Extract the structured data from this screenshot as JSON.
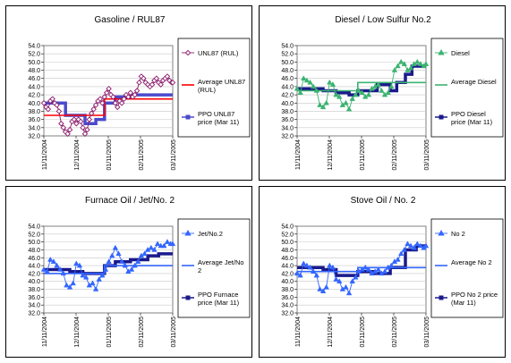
{
  "chart_data": [
    {
      "type": "line",
      "title": "Gasoline / RUL87",
      "ylim": [
        32.0,
        54.0
      ],
      "y_ticks": [
        "54.0",
        "52.0",
        "50.0",
        "48.0",
        "46.0",
        "44.0",
        "42.0",
        "40.0",
        "38.0",
        "36.0",
        "34.0",
        "32.0"
      ],
      "x_ticks": [
        "11/11/2004",
        "12/11/2004",
        "01/11/2005",
        "02/11/2005",
        "03/11/2005"
      ],
      "colors": {
        "market": "#8B1A6B",
        "average": "#FF0000",
        "ppo": "#4A4ACC"
      },
      "legend": [
        "UNL87 (RUL)",
        "Average UNL87 (RUL)",
        "PPO UNL87 price (Mar 11)"
      ],
      "series": [
        {
          "name": "UNL87 (RUL)",
          "marker": "diamond",
          "x": [
            0,
            2,
            4,
            6,
            8,
            10,
            12,
            14,
            16,
            18,
            20,
            22,
            24,
            26,
            28,
            30,
            32,
            34,
            36,
            38,
            40,
            42,
            44,
            46,
            48,
            50,
            52,
            54,
            56,
            58,
            60,
            62,
            64,
            66,
            68,
            70,
            72,
            74,
            76,
            78,
            80,
            82,
            84,
            86,
            88,
            90,
            92,
            94,
            96,
            98,
            100,
            102,
            104,
            106,
            108,
            110,
            112,
            114,
            116,
            118,
            119
          ],
          "y": [
            40.0,
            39.0,
            38.5,
            40.5,
            41.0,
            40.0,
            39.5,
            38.0,
            35.0,
            34.0,
            33.0,
            32.5,
            33.5,
            35.5,
            36.0,
            35.0,
            36.0,
            35.5,
            34.0,
            32.5,
            33.5,
            36.0,
            37.5,
            38.5,
            39.5,
            40.5,
            41.0,
            40.0,
            41.5,
            42.5,
            43.5,
            42.0,
            41.5,
            40.0,
            39.0,
            40.5,
            40.0,
            41.0,
            42.0,
            41.5,
            42.5,
            41.5,
            42.0,
            43.0,
            45.0,
            46.5,
            46.0,
            45.0,
            44.5,
            44.0,
            44.5,
            45.5,
            46.0,
            45.0,
            44.5,
            45.5,
            46.0,
            46.5,
            45.5,
            45.0,
            45.0
          ]
        },
        {
          "name": "Average UNL87 (RUL)",
          "x": [
            0,
            56,
            56,
            119
          ],
          "y": [
            37.0,
            37.0,
            41.0,
            41.0
          ]
        },
        {
          "name": "PPO UNL87 price (Mar 11)",
          "x": [
            0,
            20,
            20,
            38,
            38,
            48,
            48,
            56,
            56,
            66,
            66,
            82,
            82,
            119
          ],
          "y": [
            40.0,
            40.0,
            37.0,
            37.0,
            35.0,
            35.0,
            36.0,
            36.0,
            40.0,
            40.0,
            41.5,
            41.5,
            42.0,
            42.0
          ]
        }
      ]
    },
    {
      "type": "line",
      "title": "Diesel / Low Sulfur No.2",
      "ylim": [
        32.0,
        54.0
      ],
      "y_ticks": [
        "54.0",
        "52.0",
        "50.0",
        "48.0",
        "46.0",
        "44.0",
        "42.0",
        "40.0",
        "38.0",
        "36.0",
        "34.0",
        "32.0"
      ],
      "x_ticks": [
        "11/11/2004",
        "12/11/2004",
        "01/11/2005",
        "02/11/2005",
        "03/11/2005"
      ],
      "colors": {
        "market": "#3CB371",
        "average": "#3CB371",
        "ppo": "#1A1A8C"
      },
      "legend": [
        "Diesel",
        "Average Diesel",
        "PPO Diesel price (Mar 11)"
      ],
      "series": [
        {
          "name": "Diesel",
          "marker": "triangle",
          "x": [
            0,
            3,
            6,
            9,
            12,
            15,
            18,
            21,
            24,
            27,
            30,
            33,
            36,
            39,
            42,
            45,
            48,
            51,
            54,
            57,
            60,
            63,
            66,
            69,
            72,
            75,
            78,
            81,
            84,
            87,
            90,
            93,
            96,
            99,
            102,
            105,
            108,
            111,
            114,
            117,
            119
          ],
          "y": [
            43.5,
            42.5,
            46.0,
            45.5,
            45.0,
            44.0,
            43.0,
            39.5,
            39.0,
            40.0,
            45.0,
            44.5,
            42.0,
            41.5,
            39.5,
            40.0,
            38.5,
            41.0,
            42.0,
            43.0,
            42.5,
            41.5,
            42.0,
            43.5,
            44.0,
            44.5,
            43.0,
            42.0,
            42.5,
            44.0,
            48.0,
            49.0,
            50.0,
            49.5,
            48.0,
            48.5,
            49.5,
            50.0,
            49.5,
            49.0,
            49.5
          ]
        },
        {
          "name": "Average Diesel",
          "x": [
            0,
            56,
            56,
            119
          ],
          "y": [
            43.0,
            43.0,
            45.0,
            45.0
          ]
        },
        {
          "name": "PPO Diesel price (Mar 11)",
          "x": [
            0,
            24,
            24,
            36,
            36,
            48,
            48,
            56,
            56,
            74,
            74,
            86,
            86,
            92,
            92,
            100,
            100,
            106,
            106,
            119
          ],
          "y": [
            43.5,
            43.5,
            43.0,
            43.0,
            42.5,
            42.5,
            42.0,
            42.0,
            43.0,
            43.0,
            44.5,
            44.5,
            43.0,
            43.0,
            45.0,
            45.0,
            47.0,
            47.0,
            49.0,
            49.0
          ]
        }
      ]
    },
    {
      "type": "line",
      "title": "Furnace Oil /  Jet/No. 2",
      "ylim": [
        32.0,
        54.0
      ],
      "y_ticks": [
        "54.0",
        "52.0",
        "50.0",
        "48.0",
        "46.0",
        "44.0",
        "42.0",
        "40.0",
        "38.0",
        "36.0",
        "34.0",
        "32.0"
      ],
      "x_ticks": [
        "11/11/2004",
        "12/11/2004",
        "01/11/2005",
        "02/11/2005",
        "03/11/2005"
      ],
      "colors": {
        "market": "#3366FF",
        "average": "#3366FF",
        "ppo": "#1A1A8C"
      },
      "legend": [
        "Jet/No.2",
        "Average Jet/No 2",
        "PPO Furnace price (Mar 11)"
      ],
      "series": [
        {
          "name": "Jet/No.2",
          "marker": "triangle",
          "x": [
            0,
            3,
            6,
            9,
            12,
            15,
            18,
            21,
            24,
            27,
            30,
            33,
            36,
            39,
            42,
            45,
            48,
            51,
            54,
            57,
            60,
            63,
            66,
            69,
            72,
            75,
            78,
            81,
            84,
            87,
            90,
            93,
            96,
            99,
            102,
            105,
            108,
            111,
            114,
            117,
            119
          ],
          "y": [
            43.0,
            42.5,
            45.5,
            45.0,
            44.0,
            43.0,
            42.0,
            39.0,
            38.5,
            39.5,
            44.5,
            44.0,
            41.5,
            41.0,
            39.0,
            39.5,
            38.0,
            40.5,
            41.5,
            43.0,
            45.0,
            46.5,
            48.5,
            47.0,
            45.0,
            44.0,
            42.5,
            43.0,
            44.0,
            45.0,
            46.5,
            47.0,
            48.0,
            48.5,
            48.0,
            49.5,
            49.0,
            49.0,
            50.0,
            49.5,
            49.5
          ]
        },
        {
          "name": "Average Jet/No 2",
          "x": [
            0,
            56,
            56,
            119
          ],
          "y": [
            42.0,
            42.0,
            44.0,
            44.0
          ]
        },
        {
          "name": "PPO Furnace price (Mar 11)",
          "x": [
            0,
            24,
            24,
            36,
            36,
            56,
            56,
            66,
            66,
            80,
            80,
            96,
            96,
            106,
            106,
            119
          ],
          "y": [
            43.0,
            43.0,
            42.5,
            42.5,
            42.0,
            42.0,
            44.0,
            44.0,
            45.0,
            45.0,
            45.5,
            45.5,
            46.5,
            46.5,
            47.0,
            47.0
          ]
        }
      ]
    },
    {
      "type": "line",
      "title": "Stove Oil  / No. 2",
      "ylim": [
        32.0,
        54.0
      ],
      "y_ticks": [
        "54.0",
        "52.0",
        "50.0",
        "48.0",
        "46.0",
        "44.0",
        "42.0",
        "40.0",
        "38.0",
        "36.0",
        "34.0",
        "32.0"
      ],
      "x_ticks": [
        "11/11/2004",
        "12/11/2004",
        "01/11/2005",
        "02/11/2005",
        "03/11/2005"
      ],
      "colors": {
        "market": "#3366FF",
        "average": "#3366FF",
        "ppo": "#1A1A8C"
      },
      "legend": [
        "No 2",
        "Average No 2",
        "PPO No 2 price (Mar 11)"
      ],
      "series": [
        {
          "name": "No 2",
          "marker": "triangle",
          "x": [
            0,
            3,
            6,
            9,
            12,
            15,
            18,
            21,
            24,
            27,
            30,
            33,
            36,
            39,
            42,
            45,
            48,
            51,
            54,
            57,
            60,
            63,
            66,
            69,
            72,
            75,
            78,
            81,
            84,
            87,
            90,
            93,
            96,
            99,
            102,
            105,
            108,
            111,
            114,
            117,
            119
          ],
          "y": [
            42.0,
            41.5,
            44.5,
            44.0,
            43.5,
            42.5,
            41.5,
            38.0,
            37.5,
            38.5,
            44.0,
            43.5,
            40.5,
            40.0,
            38.0,
            38.5,
            37.0,
            40.0,
            41.0,
            42.5,
            43.0,
            43.5,
            43.0,
            42.0,
            42.5,
            43.0,
            42.0,
            42.5,
            43.5,
            44.0,
            45.0,
            45.5,
            47.0,
            48.0,
            49.5,
            49.0,
            48.5,
            49.5,
            49.0,
            48.5,
            49.0
          ]
        },
        {
          "name": "Average No 2",
          "x": [
            0,
            56,
            56,
            119
          ],
          "y": [
            42.5,
            42.5,
            43.5,
            43.5
          ]
        },
        {
          "name": "PPO No 2 price (Mar 11)",
          "x": [
            0,
            24,
            24,
            36,
            36,
            56,
            56,
            70,
            70,
            86,
            86,
            100,
            100,
            110,
            110,
            119
          ],
          "y": [
            43.5,
            43.5,
            43.0,
            43.0,
            41.5,
            41.5,
            42.5,
            42.5,
            42.0,
            42.0,
            43.5,
            43.5,
            48.0,
            48.0,
            49.0,
            49.0
          ]
        }
      ]
    }
  ]
}
